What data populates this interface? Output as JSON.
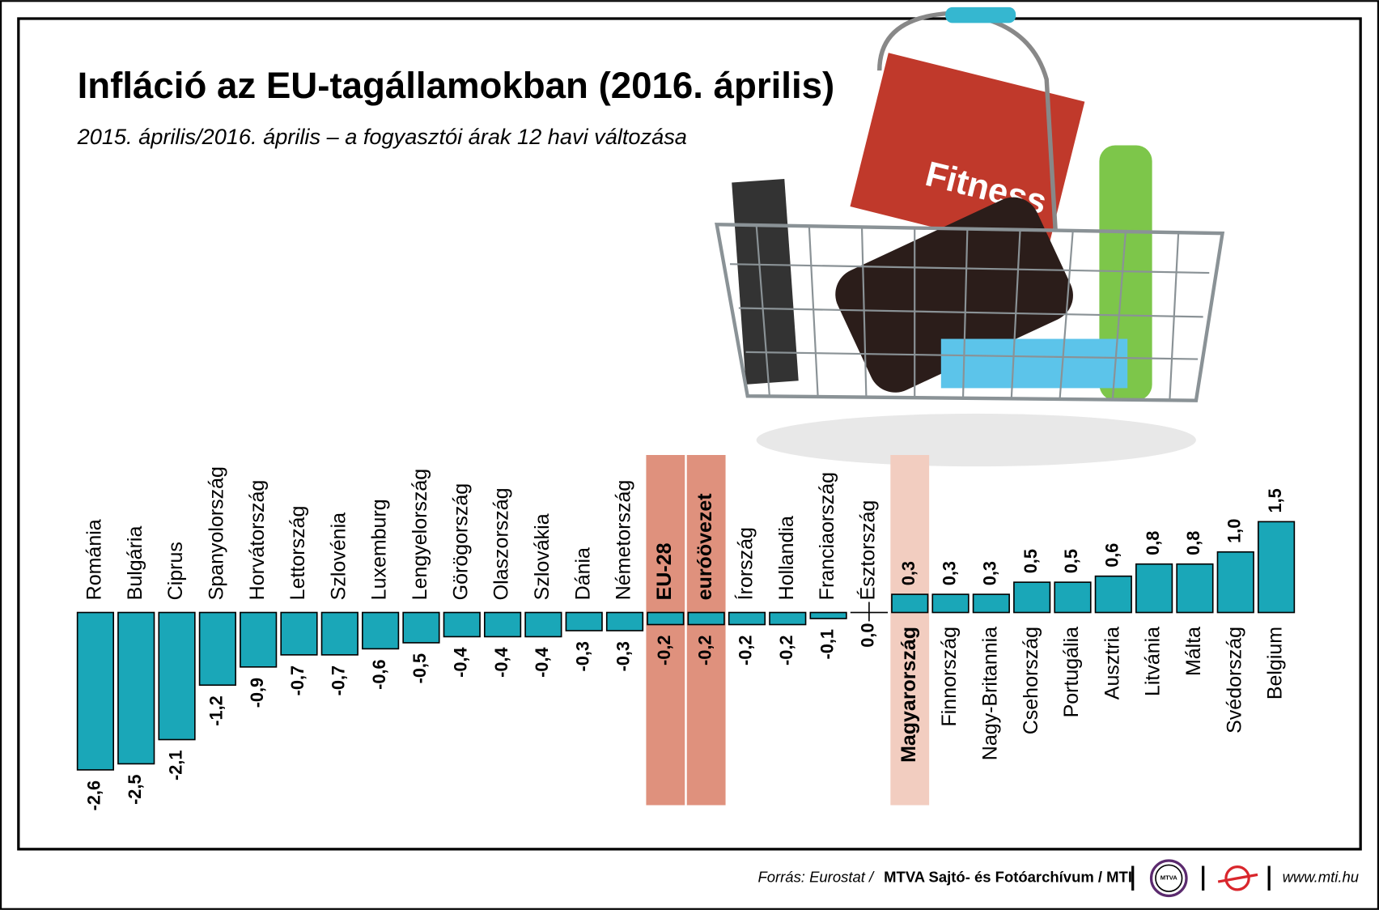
{
  "chart_data": {
    "type": "bar",
    "title": "Infláció az EU-tagállamokban (2016. április)",
    "subtitle": "2015. április/2016. április – a fogyasztói árak 12 havi változása",
    "categories": [
      "Románia",
      "Bulgária",
      "Ciprus",
      "Spanyolország",
      "Horvátország",
      "Lettország",
      "Szlovénia",
      "Luxemburg",
      "Lengyelország",
      "Görögország",
      "Olaszország",
      "Szlovákia",
      "Dánia",
      "Németország",
      "EU-28",
      "euróövezet",
      "Írország",
      "Hollandia",
      "Franciaország",
      "Észtország",
      "Magyarország",
      "Finnország",
      "Nagy-Britannia",
      "Csehország",
      "Portugália",
      "Ausztria",
      "Litvánia",
      "Málta",
      "Svédország",
      "Belgium"
    ],
    "values": [
      -2.6,
      -2.5,
      -2.1,
      -1.2,
      -0.9,
      -0.7,
      -0.7,
      -0.6,
      -0.5,
      -0.4,
      -0.4,
      -0.4,
      -0.3,
      -0.3,
      -0.2,
      -0.2,
      -0.2,
      -0.2,
      -0.1,
      0.0,
      0.3,
      0.3,
      0.3,
      0.5,
      0.5,
      0.6,
      0.8,
      0.8,
      1.0,
      1.5
    ],
    "value_labels": [
      "-2,6",
      "-2,5",
      "-2,1",
      "-1,2",
      "-0,9",
      "-0,7",
      "-0,7",
      "-0,6",
      "-0,5",
      "-0,4",
      "-0,4",
      "-0,4",
      "-0,3",
      "-0,3",
      "-0,2",
      "-0,2",
      "-0,2",
      "-0,2",
      "-0,1",
      "0,0",
      "0,3",
      "0,3",
      "0,3",
      "0,5",
      "0,5",
      "0,6",
      "0,8",
      "0,8",
      "1,0",
      "1,5"
    ],
    "color": "#1aa7b8",
    "highlight": [
      14,
      15
    ],
    "highlight_color": "#df917d",
    "highlight_light": [
      20
    ],
    "highlight_light_color": "#f2cdc0"
  },
  "footer": {
    "source_prefix": "Forrás: Eurostat /",
    "source": "MTVA Sajtó- és Fotóarchívum / MTI",
    "logo": "MTVA",
    "website": "www.mti.hu"
  }
}
